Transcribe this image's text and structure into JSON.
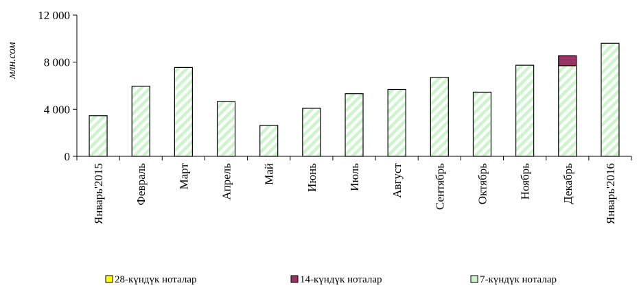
{
  "chart_data": {
    "type": "bar",
    "stacked": true,
    "ylabel": "млн.сом",
    "ylim": [
      0,
      12000
    ],
    "yticks": [
      0,
      4000,
      8000,
      12000
    ],
    "ytick_labels": [
      "0",
      "4 000",
      "8 000",
      "12 000"
    ],
    "categories": [
      "Январь'2015",
      "Февраль",
      "Март",
      "Апрель",
      "Май",
      "Июнь",
      "Июль",
      "Август",
      "Сентябрь",
      "Октябрь",
      "Ноябрь",
      "Декабрь",
      "Январь'2016"
    ],
    "series": [
      {
        "name": "7-күндүк ноталар",
        "color": "#ccf5cc",
        "pattern": "diagonal-stripes",
        "values": [
          3450,
          5950,
          7550,
          4650,
          2620,
          4080,
          5320,
          5680,
          6700,
          5450,
          7740,
          7700,
          9600
        ]
      },
      {
        "name": "14-күндүк ноталар",
        "color": "#993366",
        "values": [
          0,
          0,
          0,
          0,
          0,
          0,
          0,
          0,
          0,
          0,
          0,
          850,
          0
        ]
      },
      {
        "name": "28-күндүк ноталар",
        "color": "#ffff00",
        "values": [
          0,
          0,
          0,
          0,
          0,
          0,
          0,
          0,
          0,
          0,
          0,
          0,
          0
        ]
      }
    ],
    "legend": {
      "position": "bottom",
      "items": [
        "28-күндүк ноталар",
        "14-күндүк ноталар",
        "7-күндүк ноталар"
      ]
    }
  }
}
